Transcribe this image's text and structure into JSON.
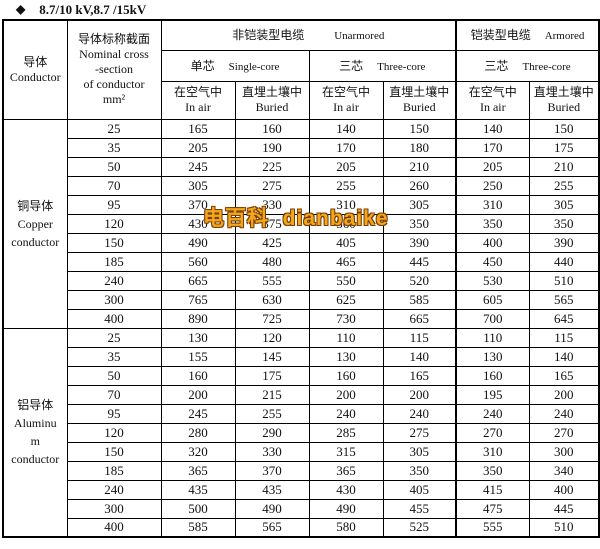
{
  "title": {
    "bullet": "◆",
    "text": "8.7/10 kV,8.7 /15kV"
  },
  "watermark": {
    "text": "电百科  dianbaike"
  },
  "colors": {
    "watermark": "#f3a81c",
    "watermark_outline": "#7a3c00",
    "border": "#000000",
    "background": "#ffffff",
    "text": "#111111"
  },
  "table": {
    "header": {
      "conductor": "导体\nConductor",
      "cross_section": "导体标称截面\nNominal cross\n-section\nof conductor\nmm²",
      "unarmored": {
        "cn": "非铠装型电缆",
        "en": "Unarmored"
      },
      "armored": {
        "cn": "铠装型电缆",
        "en": "Armored"
      },
      "single_core": {
        "cn": "单芯",
        "en": "Single-core"
      },
      "three_core": {
        "cn": "三芯",
        "en": "Three-core"
      },
      "in_air": "在空气中\nIn air",
      "buried": "直埋土壤中\nBuried"
    },
    "sections": [
      {
        "label": "铜导体\nCopper\nconductor",
        "rows": [
          {
            "size": "25",
            "values": [
              "165",
              "160",
              "140",
              "150",
              "140",
              "150"
            ]
          },
          {
            "size": "35",
            "values": [
              "205",
              "190",
              "170",
              "180",
              "170",
              "175"
            ]
          },
          {
            "size": "50",
            "values": [
              "245",
              "225",
              "205",
              "210",
              "205",
              "210"
            ]
          },
          {
            "size": "70",
            "values": [
              "305",
              "275",
              "255",
              "260",
              "250",
              "255"
            ]
          },
          {
            "size": "95",
            "values": [
              "370",
              "330",
              "310",
              "305",
              "310",
              "305"
            ]
          },
          {
            "size": "120",
            "values": [
              "430",
              "375",
              "360",
              "350",
              "350",
              "350"
            ]
          },
          {
            "size": "150",
            "values": [
              "490",
              "425",
              "405",
              "390",
              "400",
              "390"
            ]
          },
          {
            "size": "185",
            "values": [
              "560",
              "480",
              "465",
              "445",
              "450",
              "440"
            ]
          },
          {
            "size": "240",
            "values": [
              "665",
              "555",
              "550",
              "520",
              "530",
              "510"
            ]
          },
          {
            "size": "300",
            "values": [
              "765",
              "630",
              "625",
              "585",
              "605",
              "565"
            ]
          },
          {
            "size": "400",
            "values": [
              "890",
              "725",
              "730",
              "665",
              "700",
              "645"
            ]
          }
        ]
      },
      {
        "label": "铝导体\nAluminu\nm\nconductor",
        "rows": [
          {
            "size": "25",
            "values": [
              "130",
              "120",
              "110",
              "115",
              "110",
              "115"
            ]
          },
          {
            "size": "35",
            "values": [
              "155",
              "145",
              "130",
              "140",
              "130",
              "140"
            ]
          },
          {
            "size": "50",
            "values": [
              "160",
              "175",
              "160",
              "165",
              "160",
              "165"
            ]
          },
          {
            "size": "70",
            "values": [
              "200",
              "215",
              "200",
              "200",
              "195",
              "200"
            ]
          },
          {
            "size": "95",
            "values": [
              "245",
              "255",
              "240",
              "240",
              "240",
              "240"
            ]
          },
          {
            "size": "120",
            "values": [
              "280",
              "290",
              "285",
              "275",
              "270",
              "270"
            ]
          },
          {
            "size": "150",
            "values": [
              "320",
              "330",
              "315",
              "305",
              "310",
              "300"
            ]
          },
          {
            "size": "185",
            "values": [
              "365",
              "370",
              "365",
              "350",
              "350",
              "340"
            ]
          },
          {
            "size": "240",
            "values": [
              "435",
              "435",
              "430",
              "405",
              "415",
              "400"
            ]
          },
          {
            "size": "300",
            "values": [
              "500",
              "490",
              "490",
              "455",
              "475",
              "445"
            ]
          },
          {
            "size": "400",
            "values": [
              "585",
              "565",
              "580",
              "525",
              "555",
              "510"
            ]
          }
        ]
      }
    ]
  }
}
